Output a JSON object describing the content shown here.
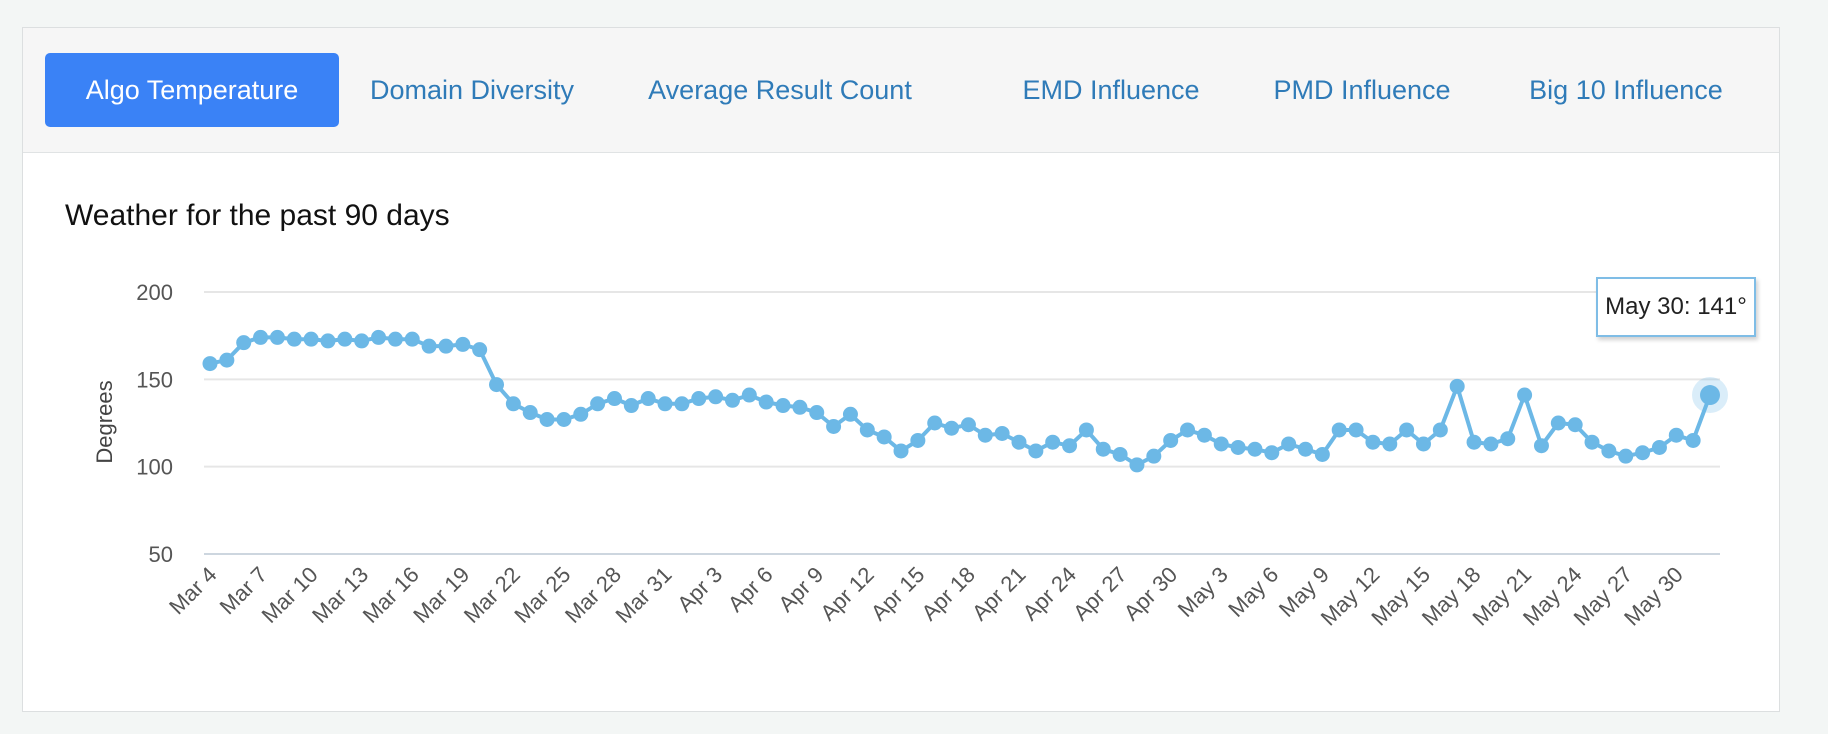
{
  "tabs": [
    {
      "label": "Algo Temperature",
      "active": true
    },
    {
      "label": "Domain Diversity",
      "active": false
    },
    {
      "label": "Average Result Count",
      "active": false
    },
    {
      "label": "EMD Influence",
      "active": false
    },
    {
      "label": "PMD Influence",
      "active": false
    },
    {
      "label": "Big 10 Influence",
      "active": false
    }
  ],
  "colors": {
    "accent": "#3a82f6",
    "tab_text": "#2f7bb8",
    "series": "#6cb8e6"
  },
  "tooltip": {
    "text": "May 30: 141°"
  },
  "chart_data": {
    "type": "line",
    "title": "Weather for the past 90 days",
    "ylabel": "Degrees",
    "xlabel": "",
    "ylim": [
      50,
      200
    ],
    "yticks": [
      50,
      100,
      150,
      200
    ],
    "grid": true,
    "x_tick_labels": [
      "Mar 4",
      "Mar 7",
      "Mar 10",
      "Mar 13",
      "Mar 16",
      "Mar 19",
      "Mar 22",
      "Mar 25",
      "Mar 28",
      "Mar 31",
      "Apr 3",
      "Apr 6",
      "Apr 9",
      "Apr 12",
      "Apr 15",
      "Apr 18",
      "Apr 21",
      "Apr 24",
      "Apr 27",
      "Apr 30",
      "May 3",
      "May 6",
      "May 9",
      "May 12",
      "May 15",
      "May 18",
      "May 21",
      "May 24",
      "May 27",
      "May 30"
    ],
    "series": [
      {
        "values": [
          159,
          161,
          171,
          174,
          174,
          173,
          173,
          172,
          173,
          172,
          174,
          173,
          173,
          169,
          169,
          170,
          167,
          147,
          136,
          131,
          127,
          127,
          130,
          136,
          139,
          135,
          139,
          136,
          136,
          139,
          140,
          138,
          141,
          137,
          135,
          134,
          131,
          123,
          130,
          121,
          117,
          109,
          115,
          125,
          122,
          124,
          118,
          119,
          114,
          109,
          114,
          112,
          121,
          110,
          107,
          101,
          106,
          115,
          121,
          118,
          113,
          111,
          110,
          108,
          113,
          110,
          107,
          121,
          121,
          114,
          113,
          121,
          113,
          121,
          146,
          114,
          113,
          116,
          141,
          112,
          125,
          124,
          114,
          109,
          106,
          108,
          111,
          118,
          115,
          141
        ]
      }
    ]
  }
}
